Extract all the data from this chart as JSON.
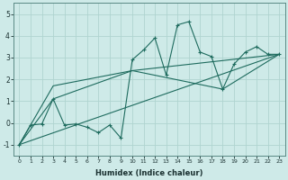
{
  "xlabel": "Humidex (Indice chaleur)",
  "bg_color": "#ceeae8",
  "grid_color": "#afd4d0",
  "line_color": "#1e6b5e",
  "xlim": [
    -0.5,
    23.5
  ],
  "ylim": [
    -1.5,
    5.5
  ],
  "xticks": [
    0,
    1,
    2,
    3,
    4,
    5,
    6,
    7,
    8,
    9,
    10,
    11,
    12,
    13,
    14,
    15,
    16,
    17,
    18,
    19,
    20,
    21,
    22,
    23
  ],
  "yticks": [
    -1,
    0,
    1,
    2,
    3,
    4,
    5
  ],
  "series1_x": [
    0,
    1,
    2,
    3,
    4,
    5,
    6,
    7,
    8,
    9,
    10,
    11,
    12,
    13,
    14,
    15,
    16,
    17,
    18,
    19,
    20,
    21,
    22,
    23
  ],
  "series1_y": [
    -1.0,
    -0.1,
    -0.05,
    1.1,
    -0.1,
    -0.05,
    -0.2,
    -0.45,
    -0.1,
    -0.7,
    2.9,
    3.35,
    3.9,
    2.2,
    4.5,
    4.65,
    3.25,
    3.05,
    1.55,
    2.7,
    3.25,
    3.5,
    3.15,
    3.15
  ],
  "line1_x": [
    0,
    23
  ],
  "line1_y": [
    -1.0,
    3.15
  ],
  "line2_x": [
    0,
    3,
    10,
    18,
    23
  ],
  "line2_y": [
    -1.0,
    1.1,
    2.4,
    1.55,
    3.15
  ],
  "line3_x": [
    0,
    3,
    10,
    23
  ],
  "line3_y": [
    -1.0,
    1.7,
    2.4,
    3.15
  ]
}
